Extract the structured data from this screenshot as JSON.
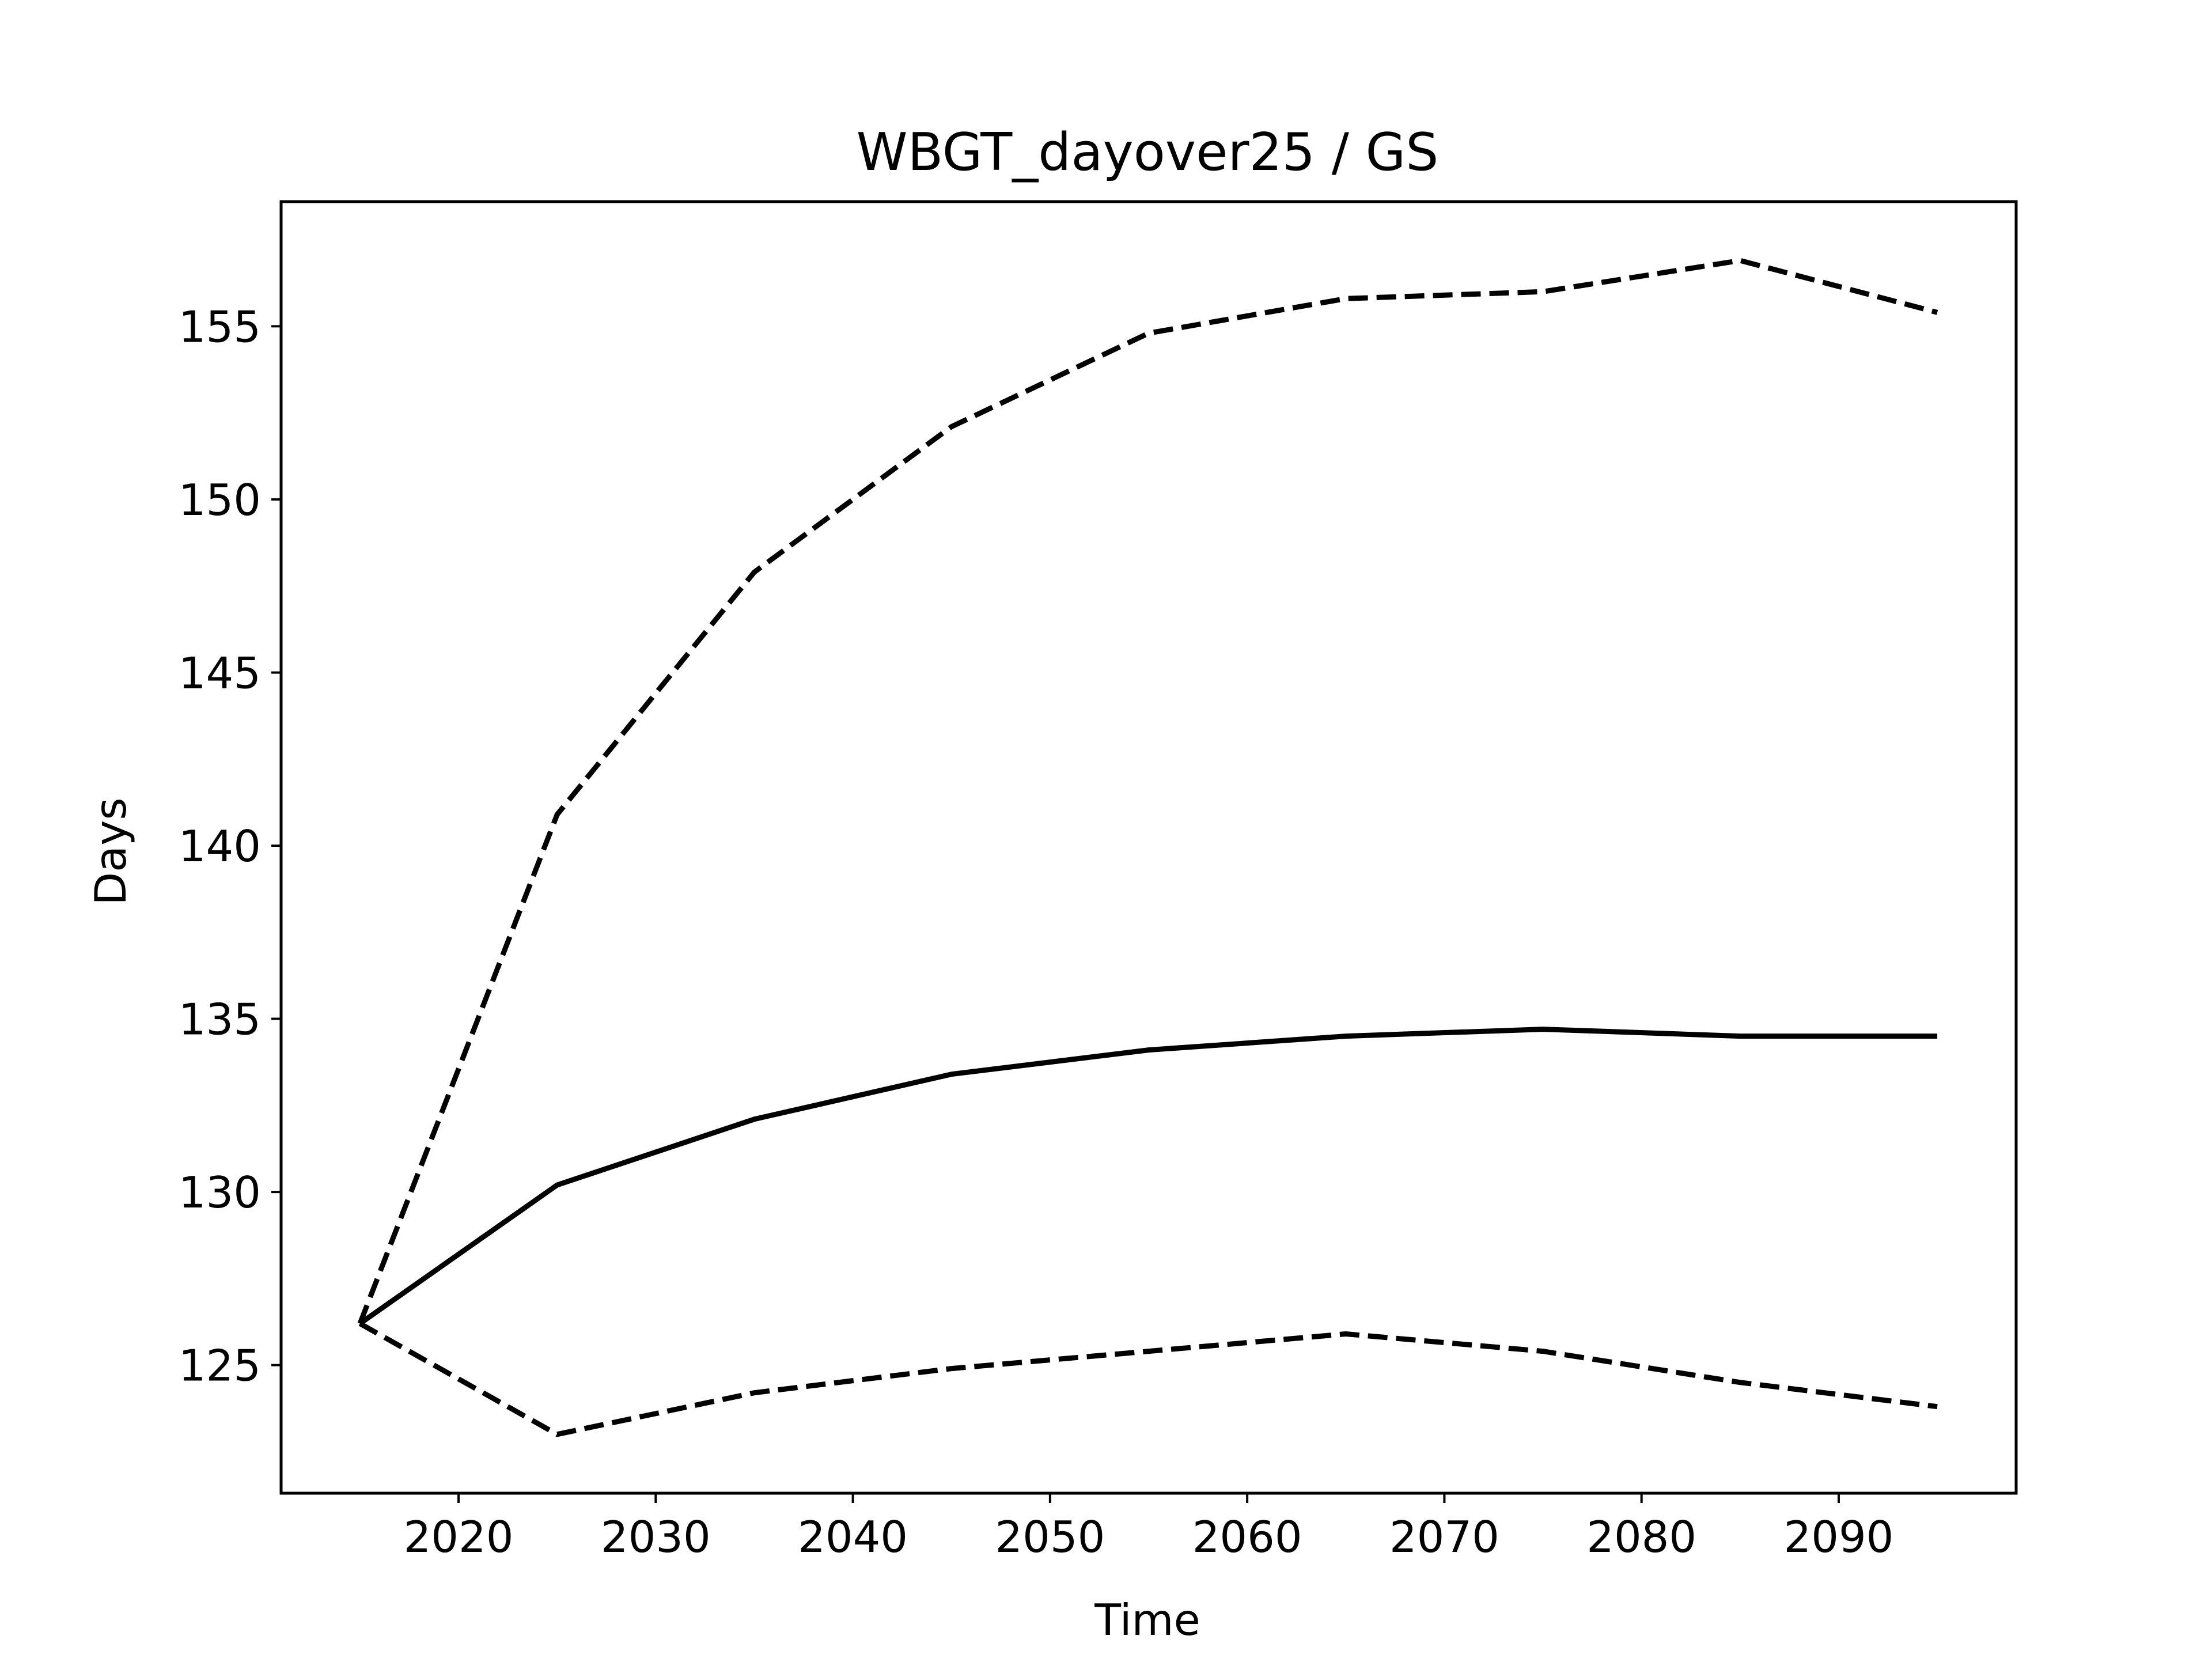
{
  "chart_data": {
    "type": "line",
    "title": "WBGT_dayover25 / GS",
    "xlabel": "Time",
    "ylabel": "Days",
    "xlim": [
      2011,
      2099
    ],
    "ylim": [
      121.3,
      158.6
    ],
    "xticks": [
      2020,
      2030,
      2040,
      2050,
      2060,
      2070,
      2080,
      2090
    ],
    "yticks": [
      125,
      130,
      135,
      140,
      145,
      150,
      155
    ],
    "grid": false,
    "x": [
      2015,
      2025,
      2035,
      2045,
      2055,
      2065,
      2075,
      2085,
      2095
    ],
    "series": [
      {
        "style": "dashed",
        "color": "#000000",
        "values": [
          126.2,
          140.9,
          147.9,
          152.1,
          154.8,
          155.8,
          156.0,
          156.9,
          155.4
        ]
      },
      {
        "style": "solid",
        "color": "#000000",
        "values": [
          126.2,
          130.2,
          132.1,
          133.4,
          134.1,
          134.5,
          134.7,
          134.5,
          134.5
        ]
      },
      {
        "style": "dashed",
        "color": "#000000",
        "values": [
          126.2,
          123.0,
          124.2,
          124.9,
          125.4,
          125.9,
          125.4,
          124.5,
          123.8
        ]
      }
    ]
  }
}
